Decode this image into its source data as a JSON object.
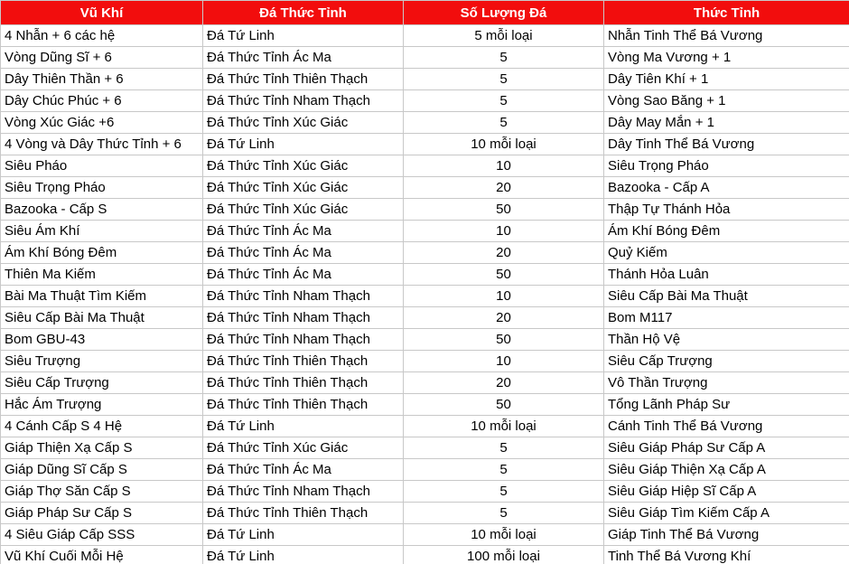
{
  "table": {
    "header": [
      "Vũ Khí",
      "Đá Thức Tỉnh",
      "Số Lượng Đá",
      "Thức Tỉnh"
    ],
    "rows": [
      [
        "4 Nhẫn + 6 các hệ",
        "Đá Tứ Linh",
        "5 mỗi loại",
        "Nhẫn Tinh Thể Bá Vương"
      ],
      [
        "Vòng Dũng Sĩ + 6",
        "Đá Thức Tỉnh Ác Ma",
        5,
        "Vòng Ma Vương + 1"
      ],
      [
        "Dây Thiên Thần + 6",
        "Đá Thức Tỉnh Thiên Thạch",
        5,
        "Dây Tiên Khí + 1"
      ],
      [
        "Dây Chúc Phúc + 6",
        "Đá Thức Tỉnh Nham Thạch",
        5,
        "Vòng Sao Băng + 1"
      ],
      [
        "Vòng Xúc Giác +6",
        "Đá Thức Tỉnh Xúc Giác",
        5,
        "Dây May Mắn + 1"
      ],
      [
        "4 Vòng và Dây Thức Tỉnh + 6",
        "Đá Tứ Linh",
        "10 mỗi loại",
        "Dây Tinh Thể Bá Vương"
      ],
      [
        "Siêu Pháo",
        "Đá Thức Tỉnh Xúc Giác",
        10,
        "Siêu Trọng Pháo"
      ],
      [
        "Siêu Trọng Pháo",
        "Đá Thức Tỉnh Xúc Giác",
        20,
        "Bazooka - Cấp A"
      ],
      [
        "Bazooka - Cấp S",
        "Đá Thức Tỉnh Xúc Giác",
        50,
        "Thập Tự Thánh Hỏa"
      ],
      [
        "Siêu Ám Khí",
        "Đá Thức Tỉnh Ác Ma",
        10,
        "Ám Khí Bóng Đêm"
      ],
      [
        "Ám Khí Bóng Đêm",
        "Đá Thức Tỉnh Ác Ma",
        20,
        "Quỷ Kiếm"
      ],
      [
        "Thiên Ma Kiếm",
        "Đá Thức Tỉnh Ác Ma",
        50,
        "Thánh Hỏa Luân"
      ],
      [
        "Bài Ma Thuật Tìm Kiếm",
        "Đá Thức Tỉnh Nham Thạch",
        10,
        "Siêu Cấp Bài Ma Thuật"
      ],
      [
        "Siêu Cấp Bài Ma Thuật",
        "Đá Thức Tỉnh Nham Thạch",
        20,
        "Bom M117"
      ],
      [
        "Bom GBU-43",
        "Đá Thức Tỉnh Nham Thạch",
        50,
        "Thần Hộ Vệ"
      ],
      [
        "Siêu Trượng",
        "Đá Thức Tỉnh Thiên Thạch",
        10,
        "Siêu Cấp Trượng"
      ],
      [
        "Siêu Cấp Trượng",
        "Đá Thức Tỉnh Thiên Thạch",
        20,
        "Vô Thần Trượng"
      ],
      [
        "Hắc Ám Trượng",
        "Đá Thức Tỉnh Thiên Thạch",
        50,
        "Tổng Lãnh Pháp Sư"
      ],
      [
        "4 Cánh Cấp S 4 Hệ",
        "Đá Tứ Linh",
        "10 mỗi loại",
        "Cánh Tinh Thể Bá Vương"
      ],
      [
        "Giáp Thiện Xạ Cấp S",
        "Đá Thức Tỉnh Xúc Giác",
        5,
        "Siêu Giáp Pháp Sư Cấp A"
      ],
      [
        "Giáp Dũng Sĩ Cấp S",
        "Đá Thức Tỉnh Ác Ma",
        5,
        "Siêu Giáp Thiện Xạ Cấp A"
      ],
      [
        "Giáp Thợ Săn Cấp S",
        "Đá Thức Tỉnh Nham Thạch",
        5,
        "Siêu Giáp Hiệp Sĩ Cấp A"
      ],
      [
        "Giáp Pháp Sư Cấp S",
        "Đá Thức Tỉnh Thiên Thạch",
        5,
        "Siêu Giáp Tìm Kiếm Cấp A"
      ],
      [
        "4 Siêu Giáp Cấp SSS",
        "Đá Tứ Linh",
        "10 mỗi loại",
        "Giáp Tinh Thể Bá Vương"
      ],
      [
        "Vũ Khí Cuối Mỗi Hệ",
        "Đá Tứ Linh",
        "100 mỗi loại",
        "Tinh Thể Bá Vương Khí"
      ]
    ]
  }
}
